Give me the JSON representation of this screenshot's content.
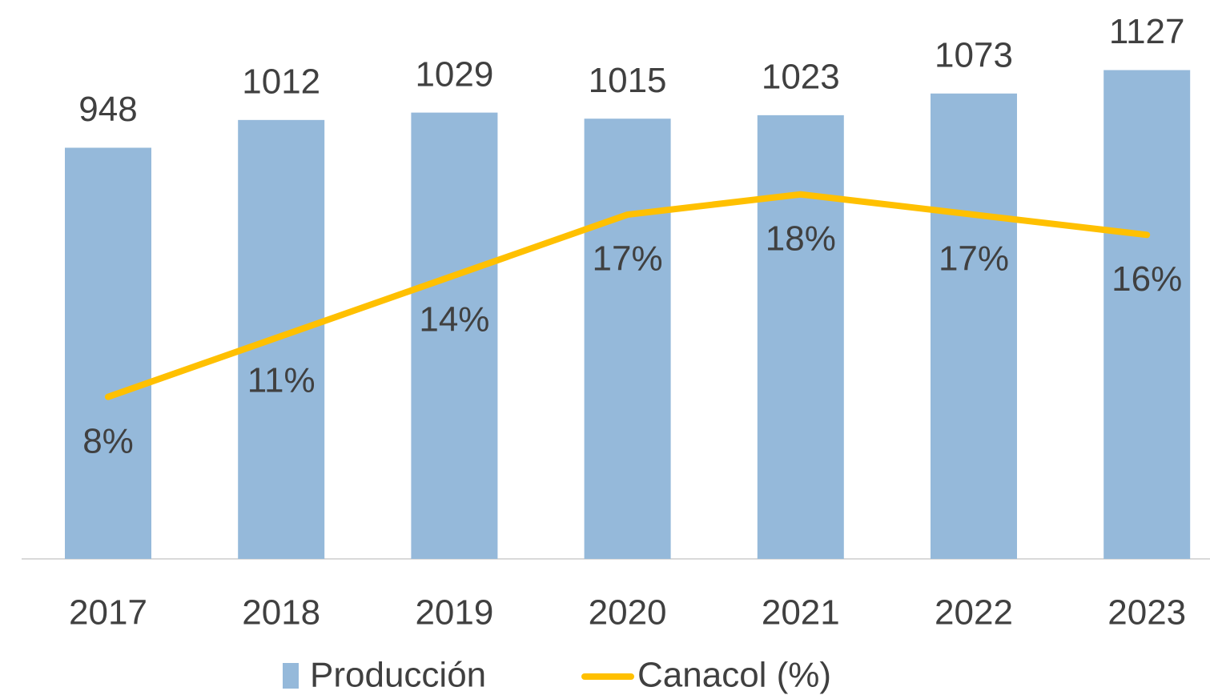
{
  "chart_data": {
    "type": "bar-line",
    "categories": [
      "2017",
      "2018",
      "2019",
      "2020",
      "2021",
      "2022",
      "2023"
    ],
    "series": [
      {
        "name": "Producción",
        "type": "bar",
        "color": "#95b9da",
        "values": [
          948,
          1012,
          1029,
          1015,
          1023,
          1073,
          1127
        ]
      },
      {
        "name": "Canacol (%)",
        "type": "line",
        "axis": "y2",
        "color": "#ffc000",
        "values": [
          8,
          11,
          14,
          17,
          18,
          17,
          16
        ],
        "value_labels": [
          "8%",
          "11%",
          "14%",
          "17%",
          "18%",
          "17%",
          "16%"
        ]
      }
    ],
    "ylim": [
      0,
      1200
    ],
    "y2lim": [
      0,
      25.7
    ],
    "legend": "bottom"
  }
}
